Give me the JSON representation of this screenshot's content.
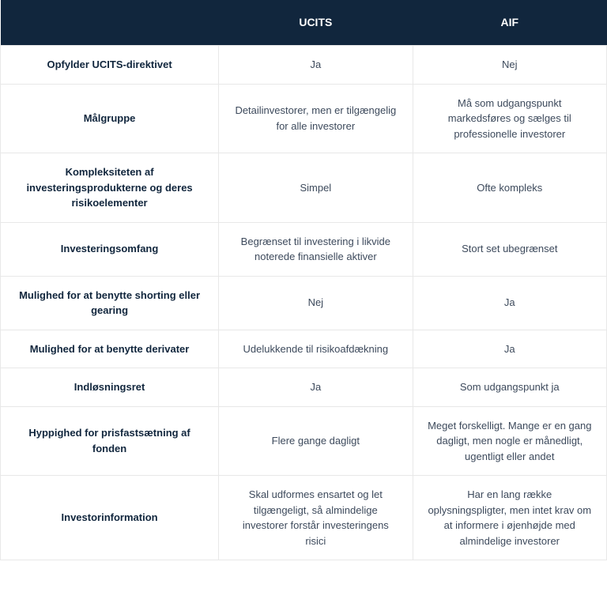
{
  "table": {
    "header_bg": "#11263d",
    "header_text": "#ffffff",
    "cell_text": "#3d4a5c",
    "label_text": "#11263d",
    "border_color": "#e8e8e8",
    "font_size_body": 13,
    "font_size_header": 14,
    "columns": [
      "",
      "UCITS",
      "AIF"
    ],
    "rows": [
      {
        "label": "Opfylder UCITS-direktivet",
        "ucits": "Ja",
        "aif": "Nej"
      },
      {
        "label": "Målgruppe",
        "ucits": "Detailinvestorer, men er tilgængelig for alle investorer",
        "aif": "Må som udgangspunkt markedsføres og sælges til professionelle investorer"
      },
      {
        "label": "Kompleksiteten af investeringsprodukterne og deres risikoelementer",
        "ucits": "Simpel",
        "aif": "Ofte kompleks"
      },
      {
        "label": "Investeringsomfang",
        "ucits": "Begrænset til investering i likvide noterede finansielle aktiver",
        "aif": "Stort set ubegrænset"
      },
      {
        "label": "Mulighed for at benytte shorting eller gearing",
        "ucits": "Nej",
        "aif": "Ja"
      },
      {
        "label": "Mulighed for at benytte derivater",
        "ucits": "Udelukkende til risikoafdækning",
        "aif": "Ja"
      },
      {
        "label": "Indløsningsret",
        "ucits": "Ja",
        "aif": "Som udgangspunkt ja"
      },
      {
        "label": "Hyppighed for prisfastsætning af fonden",
        "ucits": "Flere gange dagligt",
        "aif": "Meget forskelligt. Mange er en gang dagligt, men nogle er månedligt, ugentligt eller andet"
      },
      {
        "label": "Investorinformation",
        "ucits": "Skal udformes ensartet og let tilgængeligt, så almindelige investorer forstår investeringens risici",
        "aif": "Har en lang række oplysningspligter, men intet krav om at informere i øjenhøjde med almindelige investorer"
      }
    ]
  }
}
